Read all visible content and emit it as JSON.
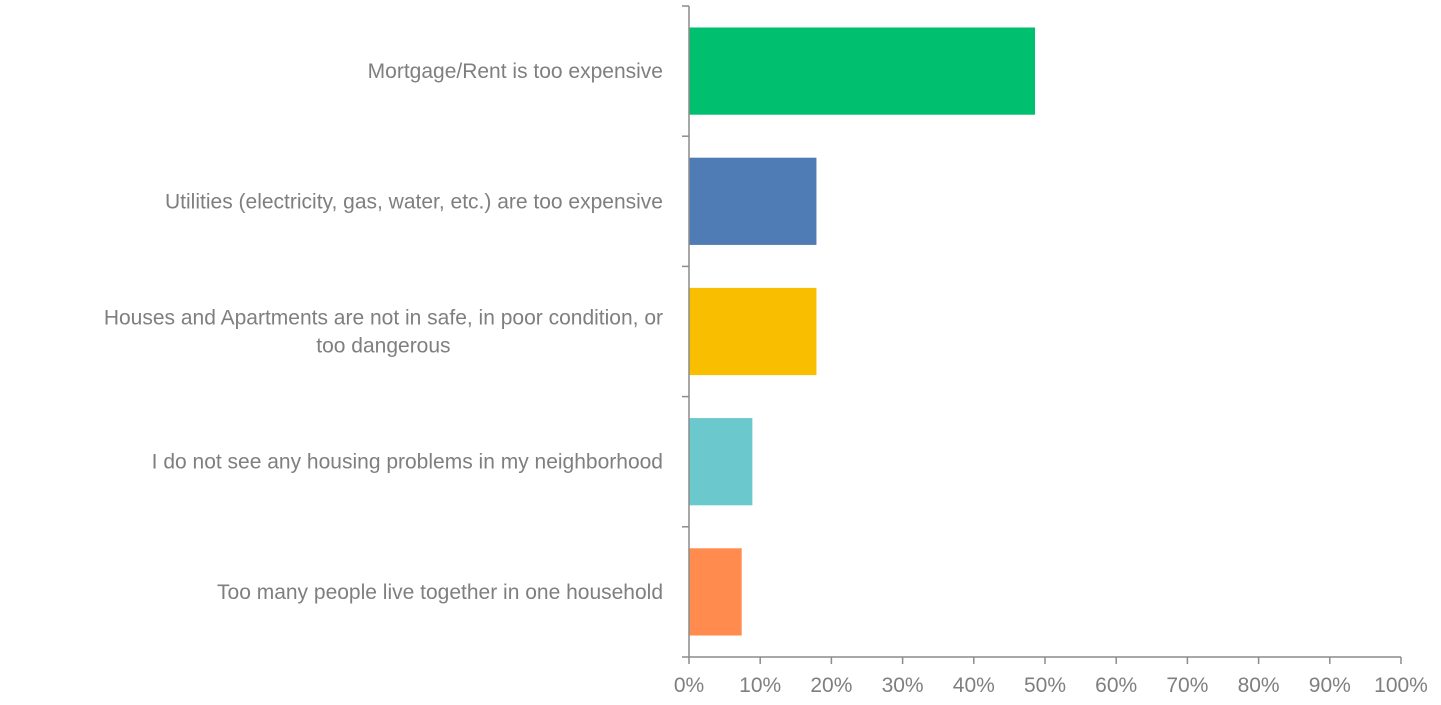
{
  "chart_data": {
    "type": "bar",
    "orientation": "horizontal",
    "categories": [
      "Mortgage/Rent is too expensive",
      "Utilities (electricity, gas, water, etc.) are too expensive",
      "Houses and Apartments are not in safe, in poor condition, or too dangerous",
      "I do not see any housing problems in my neighborhood",
      "Too many people live together in one household"
    ],
    "category_lines": [
      [
        "Mortgage/Rent is too expensive"
      ],
      [
        "Utilities (electricity, gas, water, etc.) are too expensive"
      ],
      [
        "Houses and Apartments are not in safe, in poor condition, or",
        "too dangerous"
      ],
      [
        "I do not see any housing problems in my neighborhood"
      ],
      [
        "Too many people live together in one household"
      ]
    ],
    "values": [
      48.6,
      17.9,
      17.9,
      8.9,
      7.4
    ],
    "colors": [
      "#00bf6f",
      "#507cb6",
      "#f9be00",
      "#6bc8cd",
      "#ff8b4f"
    ],
    "xlim": [
      0,
      100
    ],
    "xticks": [
      0,
      10,
      20,
      30,
      40,
      50,
      60,
      70,
      80,
      90,
      100
    ],
    "xtick_labels": [
      "0%",
      "10%",
      "20%",
      "30%",
      "40%",
      "50%",
      "60%",
      "70%",
      "80%",
      "90%",
      "100%"
    ],
    "title": "",
    "xlabel": "",
    "ylabel": "",
    "grid": false,
    "legend": "none"
  }
}
